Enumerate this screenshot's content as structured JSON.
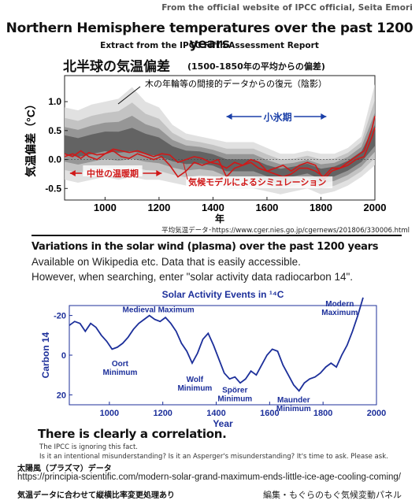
{
  "header": {
    "credit": "From the official website of IPCC official, Seita Emori",
    "title": "Northern Hemisphere temperatures over the past 1200 years",
    "subtitle": "Extract from the IPCC Fifth Assessment Report",
    "jp_title": "北半球の気温偏差",
    "jp_subtitle": "(1500-1850年の平均からの偏差)"
  },
  "chart1_source": "平均気温データ･https://www.cger.nies.go.jp/cgernews/201806/330006.html",
  "section2": {
    "title": "Variations in the solar wind (plasma) over the past 1200 years",
    "line1": "Available on Wikipedia etc. Data that is easily accessible.",
    "line2": "However, when searching, enter \"solar activity data radiocarbon 14\"."
  },
  "footer": {
    "correlation": "There is clearly a correlation.",
    "small1": "The IPCC is ignoring this fact.",
    "small2": "Is it an intentional misunderstanding? Is it an Asperger's misunderstanding? It's time to ask. Please ask.",
    "solar_label": "太陽風（プラズマ）データ",
    "url": "https://principia-scientific.com/modern-solar-grand-maximum-ends-little-ice-age-cooling-coming/",
    "note": "気温データに合わせて縦横比率変更処理あり",
    "editor": "編集・もぐらのもぐ気候変動パネル"
  },
  "chart_data": [
    {
      "type": "line",
      "title": "",
      "xlabel": "年",
      "ylabel": "気温偏差（°C）",
      "xlim": [
        850,
        2000
      ],
      "ylim": [
        -0.7,
        1.45
      ],
      "xticks": [
        1000,
        1200,
        1400,
        1600,
        1800,
        2000
      ],
      "yticks": [
        -0.5,
        0.0,
        0.5,
        1.0
      ],
      "ytick_labels": [
        "-0.5",
        "0.0",
        "0.5",
        "1.0"
      ],
      "annotations": {
        "reconstruction": "木の年輪等の間接的データからの復元（陰影）",
        "lia": "小氷期",
        "mwp": "中世の温暖期",
        "model": "気候モデルによるシミュレーション"
      },
      "colors": {
        "model": "#d01818",
        "shade": "#555555",
        "arrow_blue": "#1a3fa8",
        "arrow_red": "#d01818"
      },
      "series": [
        {
          "x": [
            850,
            880,
            910,
            940,
            970,
            1000,
            1030,
            1060,
            1090,
            1120,
            1150,
            1180,
            1210,
            1240,
            1270,
            1300,
            1330,
            1360,
            1390,
            1420,
            1450,
            1480,
            1510,
            1540,
            1570,
            1600,
            1630,
            1660,
            1690,
            1720,
            1750,
            1780,
            1810,
            1840,
            1870,
            1900,
            1930,
            1960,
            1990,
            2000
          ],
          "y": [
            0.05,
            0.1,
            0.02,
            0.12,
            0.08,
            0.1,
            0.18,
            0.15,
            0.12,
            0.15,
            0.1,
            0.05,
            0.1,
            0.08,
            -0.05,
            0.0,
            0.05,
            0.02,
            -0.05,
            -0.08,
            -0.15,
            -0.05,
            -0.1,
            -0.05,
            -0.15,
            -0.2,
            -0.25,
            -0.3,
            -0.25,
            -0.15,
            -0.15,
            -0.2,
            -0.3,
            -0.15,
            -0.15,
            -0.1,
            0.0,
            0.05,
            0.4,
            0.55
          ]
        },
        {
          "x": [
            850,
            880,
            910,
            940,
            970,
            1000,
            1030,
            1060,
            1090,
            1120,
            1150,
            1180,
            1210,
            1240,
            1270,
            1300,
            1330,
            1360,
            1390,
            1420,
            1450,
            1480,
            1510,
            1540,
            1570,
            1600,
            1630,
            1660,
            1690,
            1720,
            1750,
            1780,
            1810,
            1840,
            1870,
            1900,
            1930,
            1960,
            1990,
            2000
          ],
          "y": [
            0.1,
            0.05,
            0.15,
            0.05,
            0.0,
            0.1,
            0.15,
            0.05,
            0.02,
            0.1,
            0.05,
            0.0,
            0.05,
            -0.1,
            -0.3,
            -0.2,
            -0.05,
            -0.1,
            -0.05,
            0.0,
            -0.3,
            -0.15,
            -0.1,
            0.0,
            -0.05,
            -0.2,
            -0.15,
            -0.1,
            -0.2,
            -0.1,
            -0.05,
            -0.1,
            -0.35,
            -0.2,
            -0.15,
            -0.05,
            0.05,
            0.15,
            0.55,
            0.75
          ]
        }
      ],
      "reconstruction_band": {
        "x": [
          850,
          900,
          950,
          1000,
          1050,
          1100,
          1150,
          1200,
          1250,
          1300,
          1350,
          1400,
          1450,
          1500,
          1550,
          1600,
          1650,
          1700,
          1750,
          1800,
          1850,
          1900,
          1950,
          2000
        ],
        "mid": [
          0.25,
          0.2,
          0.25,
          0.3,
          0.28,
          0.3,
          0.25,
          0.2,
          0.1,
          0.05,
          0.05,
          0.0,
          -0.1,
          -0.1,
          -0.1,
          -0.2,
          -0.25,
          -0.2,
          -0.15,
          -0.25,
          -0.2,
          -0.1,
          0.05,
          0.35
        ],
        "upper": [
          0.9,
          0.85,
          0.95,
          1.0,
          1.05,
          1.25,
          1.0,
          0.9,
          0.6,
          0.45,
          0.4,
          0.35,
          0.3,
          0.3,
          0.3,
          0.2,
          0.1,
          0.1,
          0.15,
          0.1,
          0.1,
          0.2,
          0.4,
          1.3
        ],
        "lower": [
          -0.35,
          -0.4,
          -0.35,
          -0.3,
          -0.35,
          -0.3,
          -0.35,
          -0.35,
          -0.4,
          -0.45,
          -0.4,
          -0.4,
          -0.5,
          -0.5,
          -0.5,
          -0.55,
          -0.6,
          -0.55,
          -0.5,
          -0.6,
          -0.55,
          -0.45,
          -0.3,
          -0.1
        ]
      }
    },
    {
      "type": "line",
      "title": "Solar Activity Events in ¹⁴C",
      "xlabel": "Year",
      "ylabel": "Carbon 14",
      "xlim": [
        850,
        2000
      ],
      "ylim": [
        -25,
        25
      ],
      "y_inverted": true,
      "xticks": [
        1000,
        1200,
        1400,
        1600,
        1800,
        2000
      ],
      "yticks": [
        -20,
        0,
        20
      ],
      "ytick_labels": [
        "-20",
        "0",
        "20"
      ],
      "color": "#1c2f9a",
      "events": [
        {
          "label": "Medieval Maximum",
          "x": 1160,
          "y": -20
        },
        {
          "label": "Oort Minimum",
          "x": 1040,
          "y": 0
        },
        {
          "label": "Wolf Minimum",
          "x": 1320,
          "y": 8
        },
        {
          "label": "Spörer Minimum",
          "x": 1470,
          "y": 14
        },
        {
          "label": "Maunder Minimum",
          "x": 1690,
          "y": 19
        },
        {
          "label": "Modern Maximum",
          "x": 1880,
          "y": -23
        }
      ],
      "series": [
        {
          "x": [
            850,
            870,
            890,
            910,
            930,
            950,
            970,
            990,
            1010,
            1030,
            1050,
            1070,
            1090,
            1110,
            1130,
            1150,
            1170,
            1190,
            1210,
            1230,
            1250,
            1270,
            1290,
            1310,
            1330,
            1350,
            1370,
            1390,
            1410,
            1430,
            1450,
            1470,
            1490,
            1510,
            1530,
            1550,
            1570,
            1590,
            1610,
            1630,
            1650,
            1670,
            1690,
            1710,
            1730,
            1750,
            1770,
            1790,
            1810,
            1830,
            1850,
            1870,
            1890,
            1910,
            1930,
            1950
          ],
          "y": [
            -15,
            -17,
            -16,
            -12,
            -16,
            -14,
            -10,
            -7,
            -3,
            -4,
            -6,
            -9,
            -13,
            -16,
            -18,
            -20,
            -18,
            -17,
            -19,
            -16,
            -12,
            -6,
            -2,
            4,
            -1,
            -8,
            -11,
            -5,
            2,
            9,
            12,
            11,
            14,
            12,
            8,
            10,
            5,
            0,
            -3,
            -2,
            5,
            10,
            15,
            18,
            14,
            12,
            11,
            9,
            6,
            4,
            6,
            0,
            -5,
            -12,
            -20,
            -29
          ]
        }
      ]
    }
  ]
}
